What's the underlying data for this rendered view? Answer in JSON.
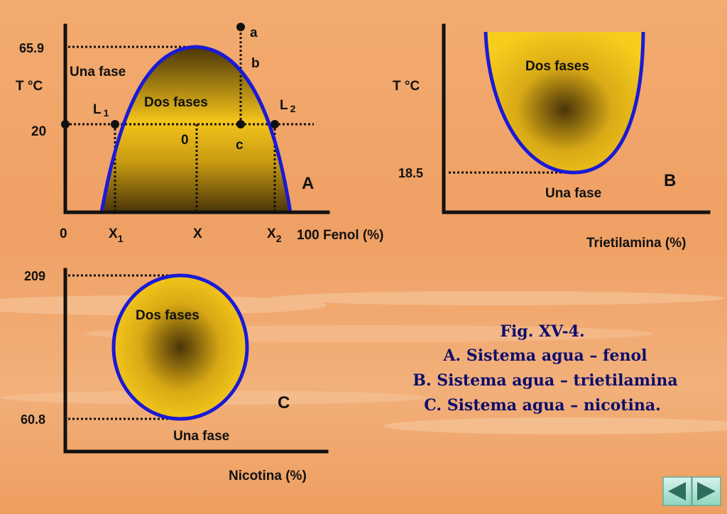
{
  "slide": {
    "caption": {
      "line1": "Fig. XV-4.",
      "line2": "A. Sistema agua – fenol",
      "line3": "B. Sistema agua – trietilamina",
      "line4": "C. Sistema agua – nicotina."
    },
    "colors": {
      "boundary": "#1a1ad6",
      "fill_light": "#f6c81a",
      "fill_dark": "#4a3408",
      "axis": "#111111",
      "caption": "#0d0d6e",
      "background": "#f0a468"
    }
  },
  "diagram_a": {
    "letter": "A",
    "y_axis_label": "T °C",
    "tick_659": "65.9",
    "tick_20": "20",
    "origin": "0",
    "x1_label": "X",
    "x1_sub": "1",
    "x_label": "X",
    "x2_label": "X",
    "x2_sub": "2",
    "x_end": "100 Fenol (%)",
    "region_one": "Una fase",
    "region_two": "Dos fases",
    "l1_label": "L",
    "l1_sub": "1",
    "l2_label": "L",
    "l2_sub": "2",
    "point_a": "a",
    "point_b": "b",
    "point_c": "c",
    "point_0": "0"
  },
  "diagram_b": {
    "letter": "B",
    "y_axis_label": "T °C",
    "tick_185": "18.5",
    "region_two": "Dos fases",
    "region_one": "Una fase",
    "x_axis_label": "Trietilamina (%)"
  },
  "diagram_c": {
    "letter": "C",
    "tick_209": "209",
    "tick_608": "60.8",
    "region_two": "Dos fases",
    "region_one": "Una fase",
    "x_axis_label": "Nicotina (%)"
  },
  "nav": {
    "prev_icon": "triangle-left-icon",
    "next_icon": "triangle-right-icon"
  }
}
